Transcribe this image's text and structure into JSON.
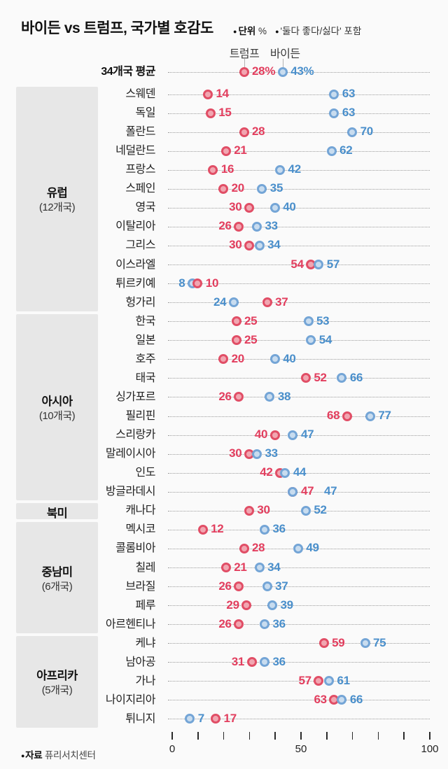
{
  "title": "바이든 vs 트럼프, 국가별 호감도",
  "legend": {
    "unit_bullet": "●",
    "unit_label": "단위",
    "unit_value": "%",
    "note_bullet": "●",
    "note_text": "'둘다 좋다/싫다' 포함"
  },
  "source": {
    "bullet": "●",
    "label": "자료",
    "value": "퓨리서치센터"
  },
  "colors": {
    "trump_text": "#e23e5e",
    "trump_ring": "#e14e66",
    "trump_fill": "#f1a6b1",
    "biden_text": "#4a8fcb",
    "biden_ring": "#74a5d6",
    "biden_fill": "#c8dcef",
    "group_box": "#e7e7e7",
    "background": "#fafafa"
  },
  "chart_data": {
    "type": "scatter",
    "variant": "dumbbell",
    "unit": "%",
    "series": [
      {
        "key": "trump",
        "name": "트럼프",
        "color": "#e14e66"
      },
      {
        "key": "biden",
        "name": "바이든",
        "color": "#74a5d6"
      }
    ],
    "x_axis": {
      "min": 0,
      "max": 100,
      "tick_step": 10,
      "tick_labels": [
        "0",
        "50",
        "100"
      ]
    },
    "average": {
      "label": "34개국 평균",
      "trump": 28,
      "biden": 43,
      "trump_label": "28%",
      "biden_label": "43%",
      "t_side": "right",
      "b_side": "right"
    },
    "groups": [
      {
        "name": "유럽",
        "count_label": "(12개국)",
        "rows": [
          {
            "label": "스웨덴",
            "trump": 14,
            "biden": 63,
            "t_side": "right",
            "b_side": "right"
          },
          {
            "label": "독일",
            "trump": 15,
            "biden": 63,
            "t_side": "right",
            "b_side": "right"
          },
          {
            "label": "폴란드",
            "trump": 28,
            "biden": 70,
            "t_side": "right",
            "b_side": "right"
          },
          {
            "label": "네덜란드",
            "trump": 21,
            "biden": 62,
            "t_side": "right",
            "b_side": "right"
          },
          {
            "label": "프랑스",
            "trump": 16,
            "biden": 42,
            "t_side": "right",
            "b_side": "right"
          },
          {
            "label": "스페인",
            "trump": 20,
            "biden": 35,
            "t_side": "right",
            "b_side": "right"
          },
          {
            "label": "영국",
            "trump": 30,
            "biden": 40,
            "t_side": "left",
            "b_side": "right"
          },
          {
            "label": "이탈리아",
            "trump": 26,
            "biden": 33,
            "t_side": "left",
            "b_side": "right"
          },
          {
            "label": "그리스",
            "trump": 30,
            "biden": 34,
            "t_side": "left",
            "b_side": "right"
          },
          {
            "label": "이스라엘",
            "trump": 54,
            "biden": 57,
            "t_side": "left",
            "b_side": "right"
          },
          {
            "label": "튀르키예",
            "trump": 10,
            "biden": 8,
            "t_side": "right",
            "b_side": "left"
          },
          {
            "label": "헝가리",
            "trump": 37,
            "biden": 24,
            "t_side": "right",
            "b_side": "left"
          }
        ]
      },
      {
        "name": "아시아",
        "count_label": "(10개국)",
        "rows": [
          {
            "label": "한국",
            "trump": 25,
            "biden": 53,
            "t_side": "right",
            "b_side": "right"
          },
          {
            "label": "일본",
            "trump": 25,
            "biden": 54,
            "t_side": "right",
            "b_side": "right"
          },
          {
            "label": "호주",
            "trump": 20,
            "biden": 40,
            "t_side": "right",
            "b_side": "right"
          },
          {
            "label": "태국",
            "trump": 52,
            "biden": 66,
            "t_side": "right",
            "b_side": "right"
          },
          {
            "label": "싱가포르",
            "trump": 26,
            "biden": 38,
            "t_side": "left",
            "b_side": "right"
          },
          {
            "label": "필리핀",
            "trump": 68,
            "biden": 77,
            "t_side": "left",
            "b_side": "right"
          },
          {
            "label": "스리랑카",
            "trump": 40,
            "biden": 47,
            "t_side": "left",
            "b_side": "right"
          },
          {
            "label": "말레이시아",
            "trump": 30,
            "biden": 33,
            "t_side": "left",
            "b_side": "right"
          },
          {
            "label": "인도",
            "trump": 42,
            "biden": 44,
            "t_side": "left",
            "b_side": "right"
          },
          {
            "label": "방글라데시",
            "trump": 47,
            "biden": 47,
            "t_side": "right",
            "b_side": "right-far"
          }
        ]
      },
      {
        "name": "북미",
        "count_label": "",
        "rows": [
          {
            "label": "캐나다",
            "trump": 30,
            "biden": 52,
            "t_side": "right",
            "b_side": "right"
          }
        ]
      },
      {
        "name": "중남미",
        "count_label": "(6개국)",
        "rows": [
          {
            "label": "멕시코",
            "trump": 12,
            "biden": 36,
            "t_side": "right",
            "b_side": "right"
          },
          {
            "label": "콜롬비아",
            "trump": 28,
            "biden": 49,
            "t_side": "right",
            "b_side": "right"
          },
          {
            "label": "칠레",
            "trump": 21,
            "biden": 34,
            "t_side": "right",
            "b_side": "right"
          },
          {
            "label": "브라질",
            "trump": 26,
            "biden": 37,
            "t_side": "left",
            "b_side": "right"
          },
          {
            "label": "페루",
            "trump": 29,
            "biden": 39,
            "t_side": "left",
            "b_side": "right"
          },
          {
            "label": "아르헨티나",
            "trump": 26,
            "biden": 36,
            "t_side": "left",
            "b_side": "right"
          }
        ]
      },
      {
        "name": "아프리카",
        "count_label": "(5개국)",
        "rows": [
          {
            "label": "케냐",
            "trump": 59,
            "biden": 75,
            "t_side": "right",
            "b_side": "right"
          },
          {
            "label": "남아공",
            "trump": 31,
            "biden": 36,
            "t_side": "left",
            "b_side": "right"
          },
          {
            "label": "가나",
            "trump": 57,
            "biden": 61,
            "t_side": "left",
            "b_side": "right"
          },
          {
            "label": "나이지리아",
            "trump": 63,
            "biden": 66,
            "t_side": "left",
            "b_side": "right"
          },
          {
            "label": "튀니지",
            "trump": 17,
            "biden": 7,
            "t_side": "right",
            "b_side": "right"
          }
        ]
      }
    ]
  }
}
